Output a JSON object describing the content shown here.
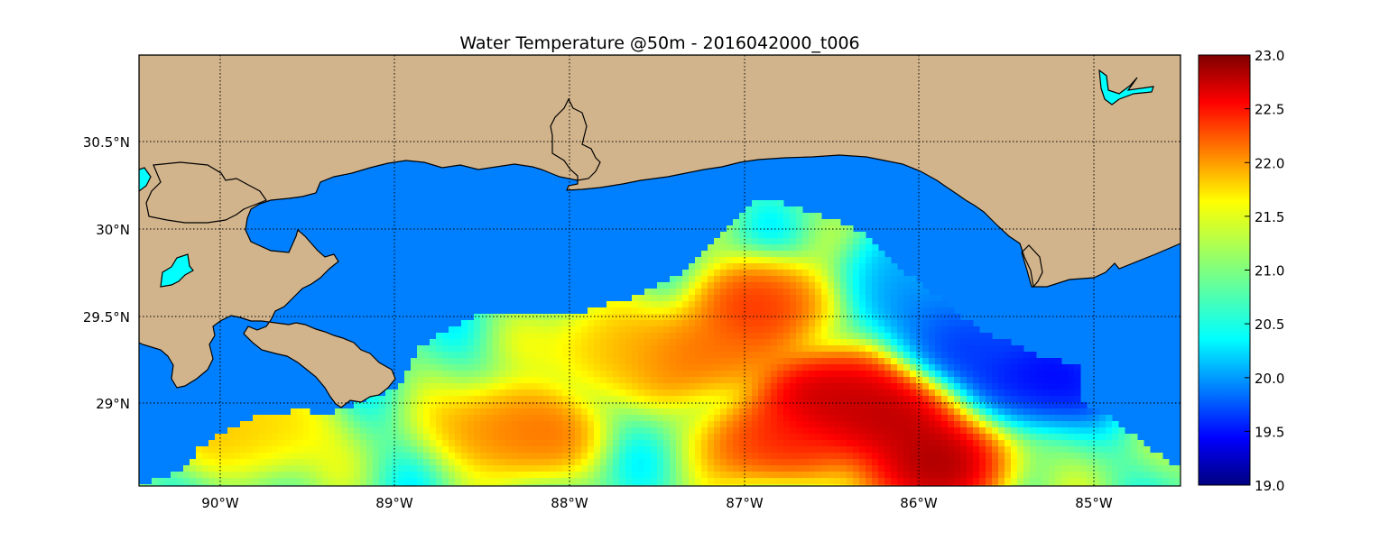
{
  "chart_data": {
    "type": "heatmap",
    "title": "Water Temperature @50m - 2016042000_t006",
    "xlabel": "",
    "ylabel": "",
    "x_ticks": [
      "90°W",
      "89°W",
      "88°W",
      "87°W",
      "86°W",
      "85°W"
    ],
    "x_tick_values": [
      -90,
      -89,
      -88,
      -87,
      -86,
      -85
    ],
    "y_ticks": [
      "30.5°N",
      "30°N",
      "29.5°N",
      "29°N"
    ],
    "y_tick_values": [
      30.5,
      30.0,
      29.5,
      29.0
    ],
    "xlim": [
      -90.46,
      -84.5
    ],
    "ylim": [
      28.53,
      31.0
    ],
    "grid": true,
    "colorbar": {
      "ticks": [
        "23.0",
        "22.5",
        "22.0",
        "21.5",
        "21.0",
        "20.5",
        "20.0",
        "19.5",
        "19.0"
      ],
      "tick_values": [
        23.0,
        22.5,
        22.0,
        21.5,
        21.0,
        20.5,
        20.0,
        19.5,
        19.0
      ],
      "range": [
        19.0,
        23.0
      ],
      "colormap": "jet"
    },
    "warm_cores": [
      {
        "lon": -86.2,
        "lat": 28.9,
        "value": 23.0
      },
      {
        "lon": -85.9,
        "lat": 28.65,
        "value": 23.0
      },
      {
        "lon": -86.5,
        "lat": 29.05,
        "value": 22.9
      },
      {
        "lon": -86.8,
        "lat": 28.8,
        "value": 22.5
      },
      {
        "lon": -86.9,
        "lat": 29.55,
        "value": 22.4
      },
      {
        "lon": -87.2,
        "lat": 29.3,
        "value": 22.2
      },
      {
        "lon": -88.3,
        "lat": 28.85,
        "value": 22.2
      },
      {
        "lon": -87.7,
        "lat": 29.3,
        "value": 21.9
      },
      {
        "lon": -89.8,
        "lat": 28.85,
        "value": 21.8
      }
    ],
    "cool_cores": [
      {
        "lon": -85.3,
        "lat": 29.15,
        "value": 19.3
      },
      {
        "lon": -85.7,
        "lat": 29.4,
        "value": 19.6
      },
      {
        "lon": -85.9,
        "lat": 29.6,
        "value": 19.9
      },
      {
        "lon": -86.0,
        "lat": 29.75,
        "value": 20.2
      }
    ],
    "colors": {
      "land": "#d2b48c",
      "water_mask": "#0080ff",
      "lake": "#00ffff",
      "coast": "#000000"
    }
  }
}
